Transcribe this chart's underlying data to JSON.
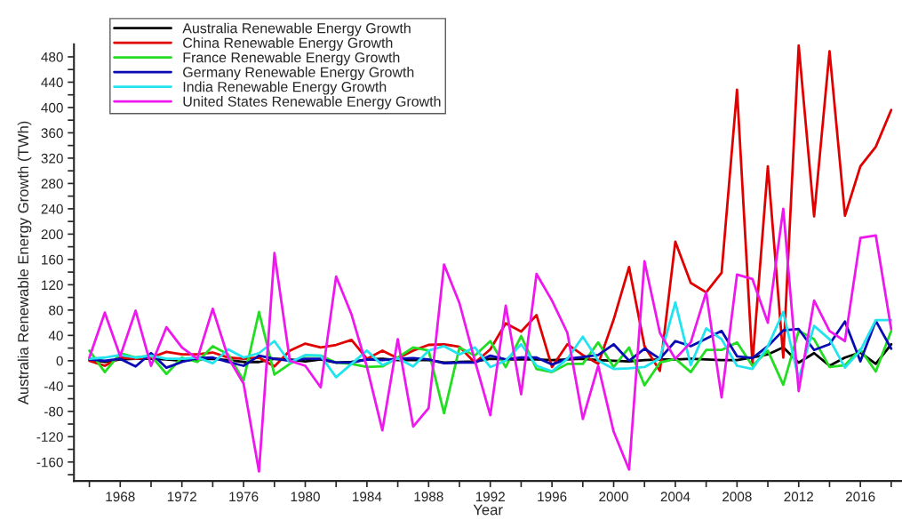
{
  "chart_data": {
    "type": "line",
    "xlabel": "Year",
    "ylabel": "Australia Renewable Energy Growth (TWh)",
    "x": [
      1966,
      1967,
      1968,
      1969,
      1970,
      1971,
      1972,
      1973,
      1974,
      1975,
      1976,
      1977,
      1978,
      1979,
      1980,
      1981,
      1982,
      1983,
      1984,
      1985,
      1986,
      1987,
      1988,
      1989,
      1990,
      1991,
      1992,
      1993,
      1994,
      1995,
      1996,
      1997,
      1998,
      1999,
      2000,
      2001,
      2002,
      2003,
      2004,
      2005,
      2006,
      2007,
      2008,
      2009,
      2010,
      2011,
      2012,
      2013,
      2014,
      2015,
      2016,
      2017,
      2018
    ],
    "series": [
      {
        "name": "Australia Renewable Energy Growth",
        "color": "#000000",
        "values": [
          2,
          -2,
          2,
          3,
          3,
          2,
          0,
          2,
          3,
          1,
          -2,
          -2,
          3,
          2,
          -1,
          2,
          -3,
          -2,
          2,
          3,
          1,
          1,
          1,
          -3,
          -2,
          -1,
          3,
          2,
          2,
          2,
          1,
          2,
          3,
          1,
          0,
          -1,
          1,
          2,
          2,
          3,
          2,
          1,
          1,
          5,
          10,
          21,
          -3,
          12,
          -8,
          5,
          13,
          -5,
          26
        ]
      },
      {
        "name": "China Renewable Energy Growth",
        "color": "#e00000",
        "values": [
          0,
          -8,
          5,
          3,
          5,
          14,
          10,
          10,
          13,
          5,
          3,
          5,
          -9,
          16,
          27,
          21,
          25,
          33,
          3,
          16,
          4,
          16,
          25,
          26,
          22,
          -3,
          18,
          59,
          46,
          72,
          -10,
          26,
          9,
          -5,
          65,
          148,
          23,
          -16,
          188,
          123,
          108,
          139,
          428,
          -5,
          307,
          5,
          498,
          228,
          489,
          229,
          307,
          338,
          396
        ]
      },
      {
        "name": "France Renewable Energy Growth",
        "color": "#22dd22",
        "values": [
          16,
          -18,
          12,
          5,
          8,
          -21,
          5,
          -2,
          23,
          10,
          -31,
          77,
          -22,
          -5,
          8,
          8,
          -3,
          -5,
          -10,
          -9,
          5,
          21,
          16,
          -83,
          21,
          8,
          31,
          -10,
          39,
          -13,
          -18,
          -5,
          -5,
          29,
          -10,
          21,
          -39,
          -3,
          3,
          -18,
          17,
          17,
          29,
          -8,
          16,
          -38,
          47,
          34,
          -10,
          -7,
          18,
          -17,
          47
        ]
      },
      {
        "name": "Germany Renewable Energy Growth",
        "color": "#0a0ab4",
        "values": [
          2,
          0,
          3,
          -9,
          12,
          -11,
          -2,
          4,
          5,
          -2,
          -8,
          8,
          3,
          0,
          3,
          3,
          -3,
          -3,
          2,
          1,
          3,
          4,
          2,
          -4,
          -3,
          -3,
          8,
          2,
          5,
          5,
          -6,
          3,
          6,
          9,
          26,
          0,
          19,
          3,
          31,
          23,
          35,
          47,
          7,
          4,
          23,
          48,
          50,
          17,
          26,
          62,
          -1,
          63,
          19
        ]
      },
      {
        "name": "India Renewable Energy Growth",
        "color": "#22e4ee",
        "values": [
          3,
          5,
          9,
          5,
          8,
          3,
          3,
          5,
          -4,
          18,
          5,
          12,
          31,
          -3,
          9,
          8,
          -26,
          -5,
          16,
          -7,
          4,
          -9,
          16,
          23,
          10,
          21,
          -10,
          0,
          26,
          -8,
          -17,
          3,
          38,
          0,
          -13,
          -12,
          -10,
          4,
          92,
          -7,
          51,
          34,
          -8,
          -13,
          23,
          77,
          -29,
          55,
          34,
          -11,
          16,
          64,
          64
        ]
      },
      {
        "name": "United States Renewable Energy Growth",
        "color": "#ee18ee",
        "values": [
          5,
          76,
          7,
          79,
          -8,
          53,
          21,
          3,
          82,
          5,
          -36,
          -175,
          170,
          0,
          -8,
          -42,
          133,
          73,
          -10,
          -110,
          34,
          -104,
          -75,
          152,
          91,
          0,
          -86,
          87,
          -53,
          137,
          95,
          44,
          -92,
          -8,
          -112,
          -172,
          157,
          44,
          3,
          29,
          108,
          -58,
          136,
          129,
          60,
          240,
          -48,
          95,
          47,
          31,
          194,
          198,
          50
        ]
      }
    ],
    "xlim": [
      1965,
      2018.7
    ],
    "xticks": [
      {
        "value": 1966,
        "label": null
      },
      1968,
      {
        "value": 1970,
        "label": null
      },
      1972,
      {
        "value": 1974,
        "label": null
      },
      1976,
      {
        "value": 1978,
        "label": null
      },
      1980,
      {
        "value": 1982,
        "label": null
      },
      1984,
      {
        "value": 1986,
        "label": null
      },
      1988,
      {
        "value": 1990,
        "label": null
      },
      1992,
      {
        "value": 1994,
        "label": null
      },
      1996,
      {
        "value": 1998,
        "label": null
      },
      2000,
      {
        "value": 2002,
        "label": null
      },
      2004,
      {
        "value": 2006,
        "label": null
      },
      2008,
      {
        "value": 2010,
        "label": null
      },
      2012,
      {
        "value": 2014,
        "label": null
      },
      2016,
      {
        "value": 2018,
        "label": null
      }
    ],
    "ylim": [
      -190,
      500
    ],
    "yticks": [
      {
        "value": -180,
        "label": null
      },
      -160,
      {
        "value": -140,
        "label": null
      },
      -120,
      {
        "value": -100,
        "label": null
      },
      -80,
      {
        "value": -60,
        "label": null
      },
      -40,
      {
        "value": -20,
        "label": null
      },
      0,
      {
        "value": 20,
        "label": null
      },
      40,
      {
        "value": 60,
        "label": null
      },
      80,
      {
        "value": 100,
        "label": null
      },
      120,
      {
        "value": 140,
        "label": null
      },
      160,
      {
        "value": 180,
        "label": null
      },
      200,
      {
        "value": 220,
        "label": null
      },
      240,
      {
        "value": 260,
        "label": null
      },
      280,
      {
        "value": 300,
        "label": null
      },
      320,
      {
        "value": 340,
        "label": null
      },
      360,
      {
        "value": 380,
        "label": null
      },
      400,
      {
        "value": 420,
        "label": null
      },
      440,
      {
        "value": 460,
        "label": null
      },
      480
    ],
    "grid": false,
    "legend": "top left",
    "line_style": "solid",
    "marker": "none"
  }
}
